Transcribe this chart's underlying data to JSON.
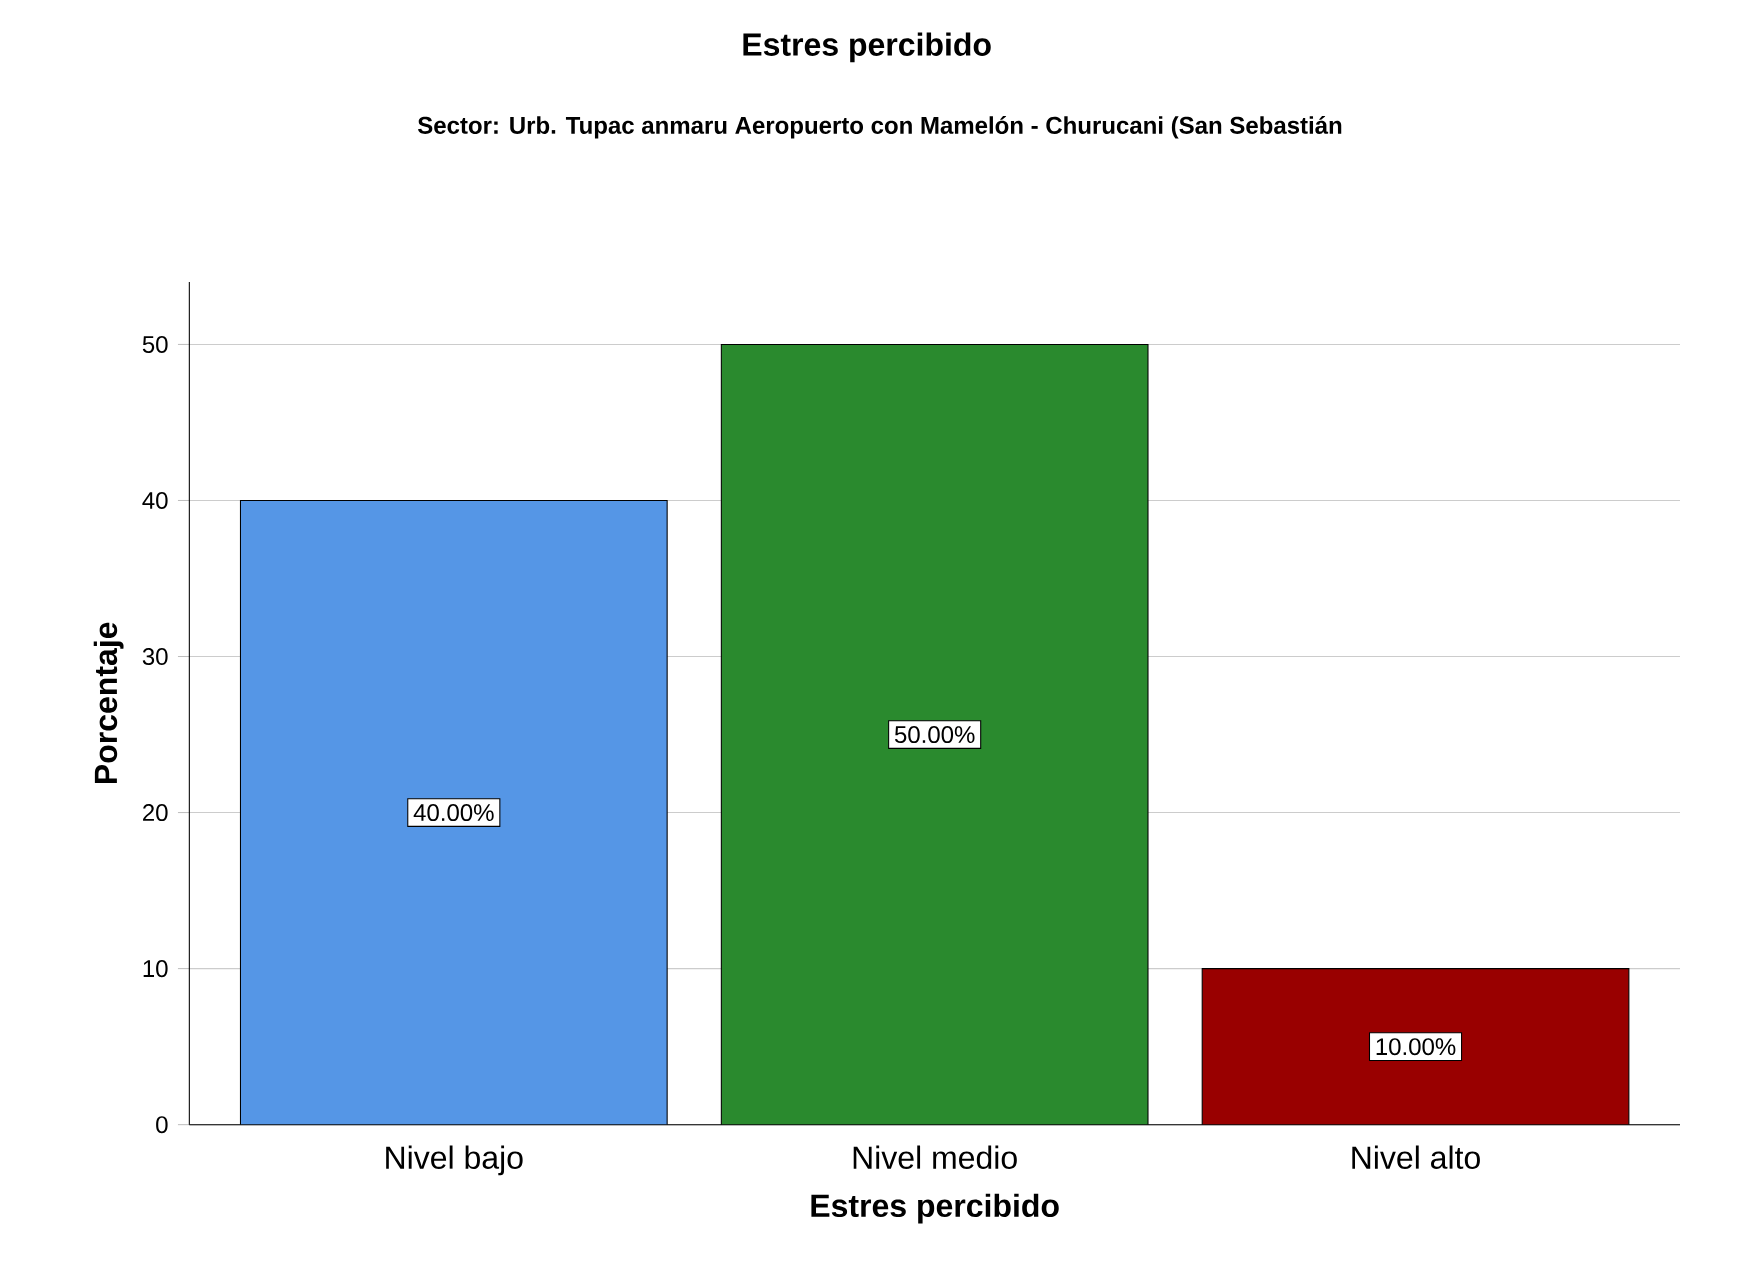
{
  "chart_data": {
    "type": "bar",
    "title": "Estres percibido",
    "subtitle": "Sector: Urb. Tupac anmaru Aeropuerto con Mamelón - Churucani (San Sebastián",
    "xlabel": "Estres percibido",
    "ylabel": "Porcentaje",
    "categories": [
      "Nivel bajo",
      "Nivel medio",
      "Nivel alto"
    ],
    "values": [
      40,
      50,
      10
    ],
    "colors": [
      "#5596e6",
      "#2a8a2e",
      "#990000"
    ],
    "value_labels": [
      "40.00%",
      "50.00%",
      "10.00%"
    ],
    "ylim": [
      0,
      54
    ],
    "yticks": [
      0,
      10,
      20,
      30,
      40,
      50
    ],
    "grid": "y"
  }
}
